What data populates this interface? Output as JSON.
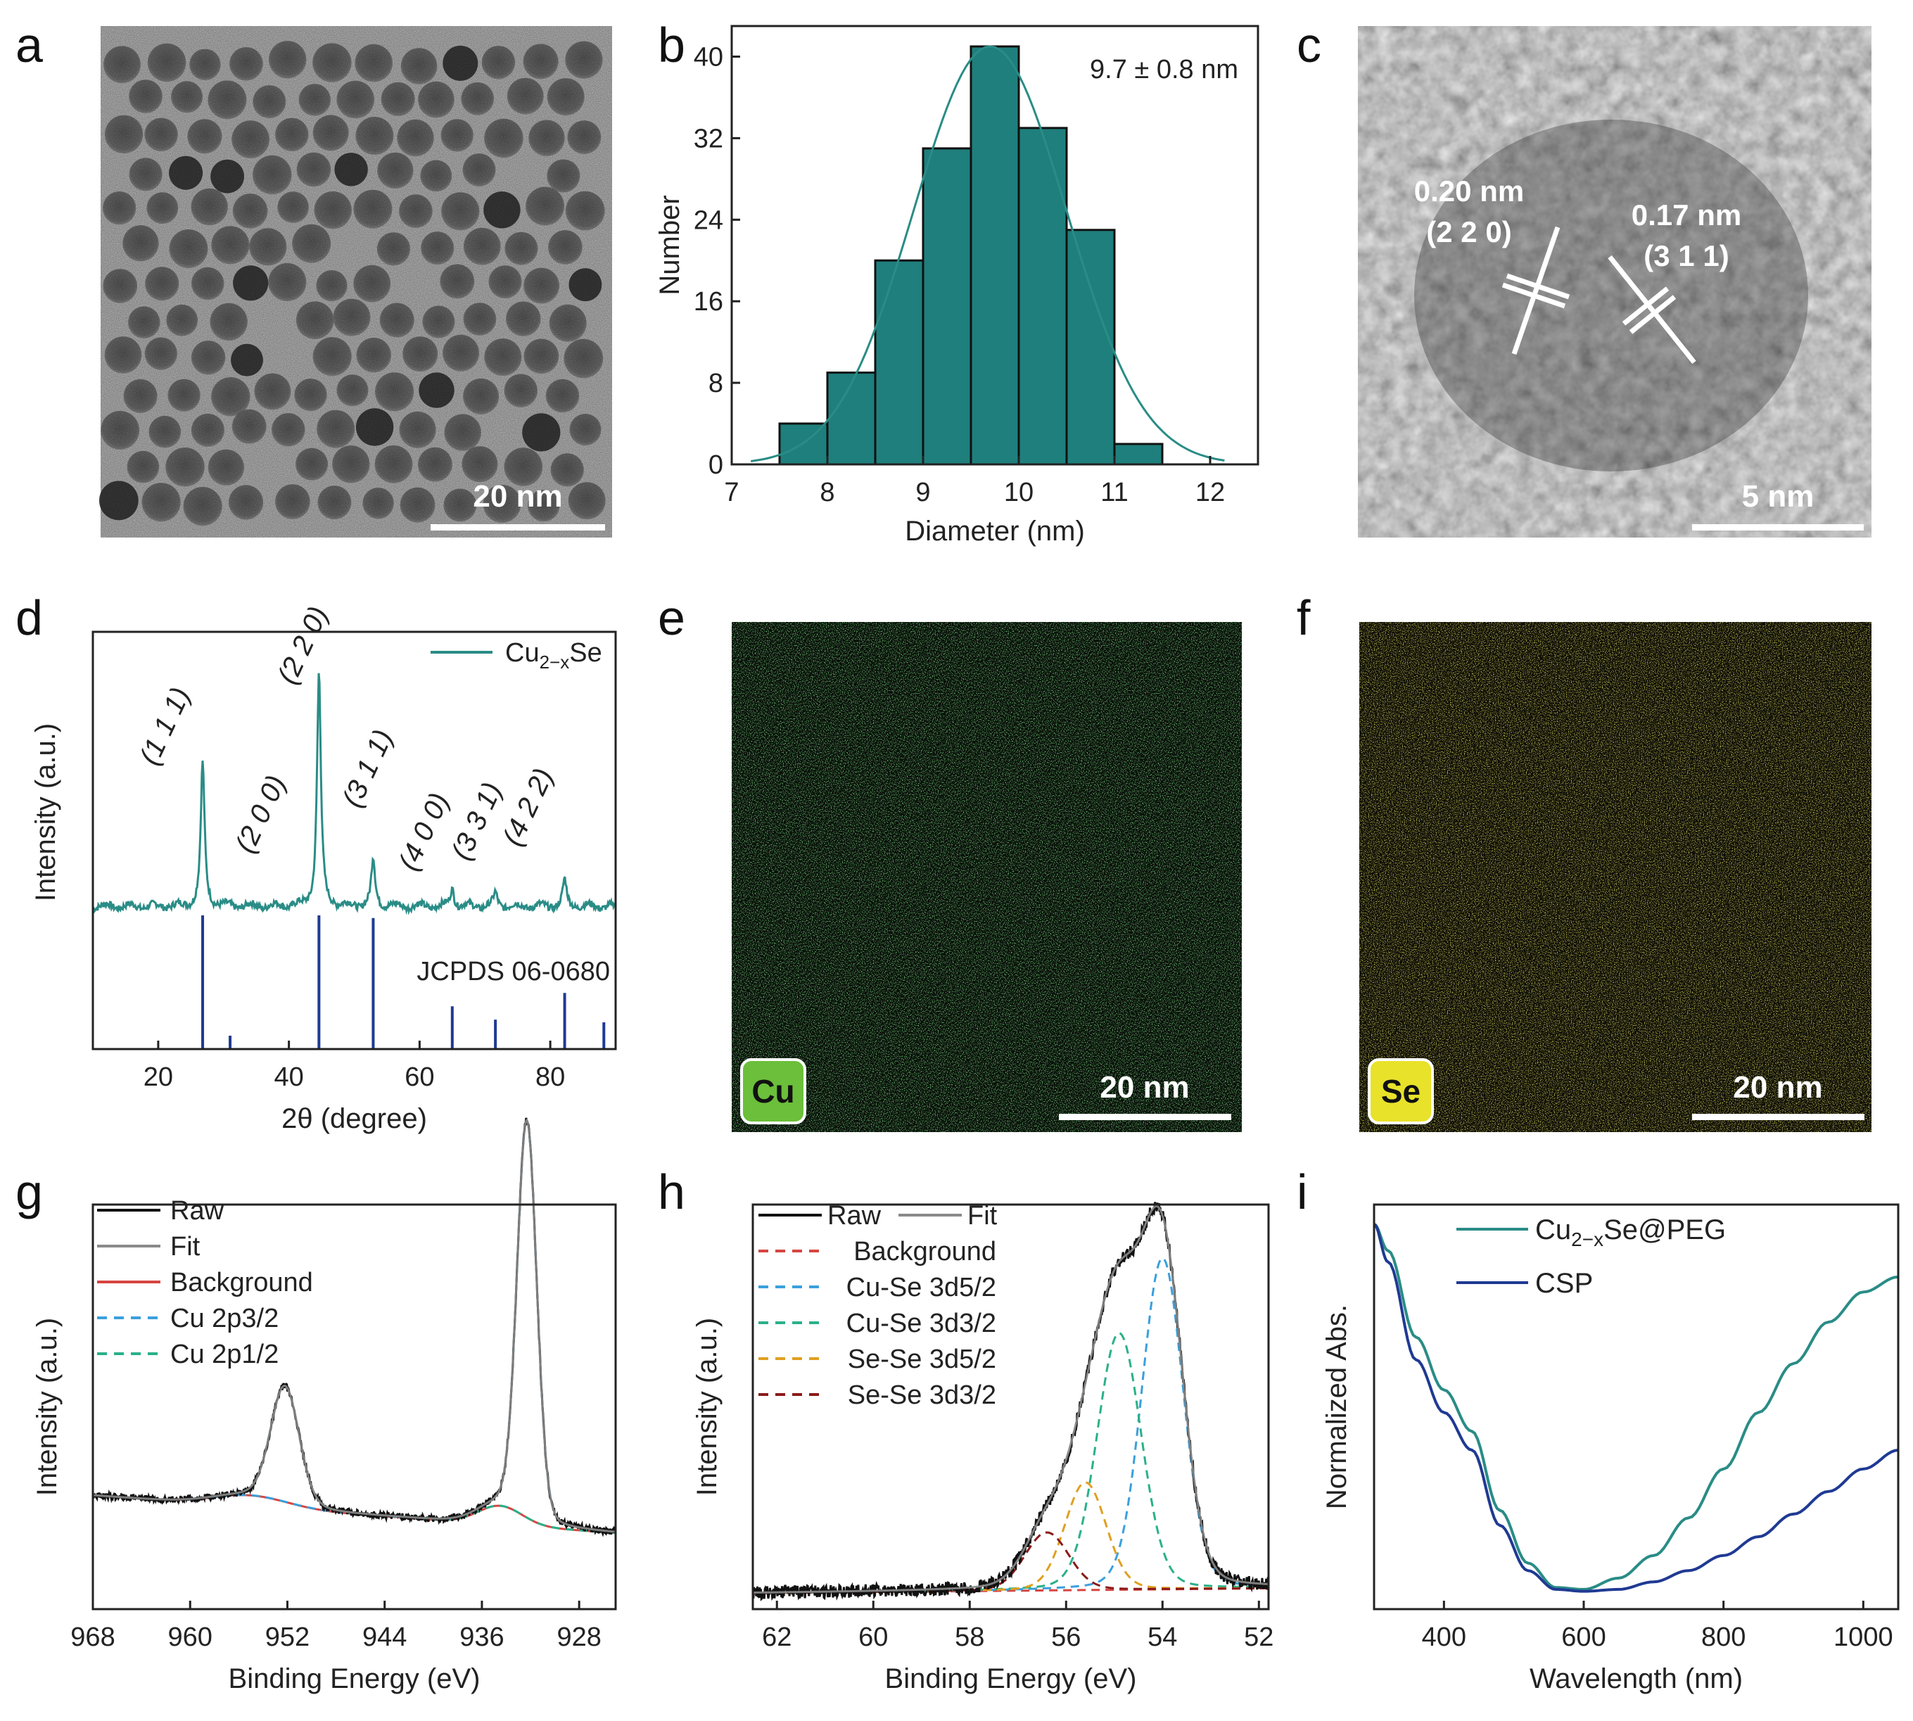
{
  "panels": {
    "a": {
      "label": "a",
      "scale_bar": "20 nm"
    },
    "b": {
      "label": "b"
    },
    "c": {
      "label": "c",
      "scale_bar": "5 nm",
      "fringe1_spacing": "0.20 nm",
      "fringe1_plane": "(2 2 0)",
      "fringe2_spacing": "0.17 nm",
      "fringe2_plane": "(3 1 1)"
    },
    "d": {
      "label": "d"
    },
    "e": {
      "label": "e",
      "element": "Cu",
      "scale_bar": "20 nm"
    },
    "f": {
      "label": "f",
      "element": "Se",
      "scale_bar": "20 nm"
    },
    "g": {
      "label": "g"
    },
    "h": {
      "label": "h"
    },
    "i": {
      "label": "i"
    }
  },
  "colors": {
    "teal": "#2a8c86",
    "bar": "#1f7f7c",
    "navy": "#1f3a93",
    "red": "#d64541",
    "blue_dash": "#3aa0dc",
    "green_dash": "#2ab08a",
    "orange_dash": "#e0a020",
    "darkred_dash": "#8b1a1a",
    "gray": "#8a8a8a",
    "cu_green": "#3fbf3f",
    "se_yellow": "#d8d020"
  },
  "chart_data": [
    {
      "id": "b",
      "type": "bar",
      "bin_edges": [
        7.5,
        8,
        8.5,
        9,
        9.5,
        10,
        10.5,
        11,
        11.5
      ],
      "values": [
        4,
        9,
        20,
        31,
        41,
        33,
        23,
        2
      ],
      "fit": {
        "mean": 9.7,
        "sd": 0.8,
        "peak": 41
      },
      "annotation": "9.7 ± 0.8 nm",
      "xlabel": "Diameter (nm)",
      "ylabel": "Number",
      "xlim": [
        7,
        12.5
      ],
      "ylim": [
        0,
        43
      ],
      "xticks": [
        7,
        8,
        9,
        10,
        11,
        12
      ],
      "yticks": [
        0,
        8,
        16,
        24,
        32,
        40
      ]
    },
    {
      "id": "d",
      "type": "line",
      "xlabel": "2θ (degree)",
      "ylabel": "Intensity (a.u.)",
      "xlim": [
        10,
        90
      ],
      "xticks": [
        20,
        40,
        60,
        80
      ],
      "legend": [
        {
          "label": "Cu",
          "sub": "2−x",
          "tail": "Se"
        }
      ],
      "reference_label": "JCPDS 06-0680",
      "peaks": [
        {
          "x": 26.8,
          "h": 0.55,
          "label": "(1 1 1)"
        },
        {
          "x": 31.0,
          "h": 0.0,
          "label": "(2 0 0)"
        },
        {
          "x": 44.6,
          "h": 0.9,
          "label": "(2 2 0)"
        },
        {
          "x": 52.9,
          "h": 0.18,
          "label": "(3 1 1)"
        },
        {
          "x": 65.0,
          "h": 0.07,
          "label": "(4 0 0)"
        },
        {
          "x": 71.6,
          "h": 0.05,
          "label": "(3 3 1)"
        },
        {
          "x": 82.2,
          "h": 0.1,
          "label": "(4 2 2)"
        }
      ],
      "reference_lines": [
        {
          "x": 26.8,
          "h": 1.0
        },
        {
          "x": 31.0,
          "h": 0.1
        },
        {
          "x": 44.6,
          "h": 1.0
        },
        {
          "x": 52.9,
          "h": 0.98
        },
        {
          "x": 65.0,
          "h": 0.32
        },
        {
          "x": 71.6,
          "h": 0.22
        },
        {
          "x": 82.2,
          "h": 0.42
        },
        {
          "x": 88.2,
          "h": 0.2
        }
      ]
    },
    {
      "id": "g",
      "type": "line",
      "xlabel": "Binding Energy (eV)",
      "ylabel": "Intensity (a.u.)",
      "xlim": [
        968,
        925
      ],
      "xticks": [
        968,
        960,
        952,
        944,
        936,
        928
      ],
      "legend": [
        {
          "label": "Raw",
          "style": "solid",
          "color": "#111111"
        },
        {
          "label": "Fit",
          "style": "solid",
          "color": "#8a8a8a"
        },
        {
          "label": "Background",
          "style": "solid",
          "color": "#d64541"
        },
        {
          "label": "Cu 2p3/2",
          "style": "dashed",
          "color": "#3aa0dc"
        },
        {
          "label": "Cu 2p1/2",
          "style": "dashed",
          "color": "#2ab08a"
        }
      ],
      "peaks": [
        {
          "center": 952.2,
          "height": 0.28,
          "name": "Cu 2p1/2"
        },
        {
          "center": 932.3,
          "height": 0.96,
          "name": "Cu 2p3/2"
        }
      ]
    },
    {
      "id": "h",
      "type": "line",
      "xlabel": "Binding Energy (eV)",
      "ylabel": "Intensity (a.u.)",
      "xlim": [
        62.5,
        51.8
      ],
      "xticks": [
        62,
        60,
        58,
        56,
        54,
        52
      ],
      "legend": [
        {
          "label": "Raw",
          "style": "solid",
          "color": "#111111"
        },
        {
          "label": "Fit",
          "style": "solid",
          "color": "#8a8a8a"
        },
        {
          "label": "Background",
          "style": "dashed",
          "color": "#d64541"
        },
        {
          "label": "Cu-Se 3d5/2",
          "style": "dashed",
          "color": "#3aa0dc"
        },
        {
          "label": "Cu-Se 3d3/2",
          "style": "dashed",
          "color": "#2ab08a"
        },
        {
          "label": "Se-Se 3d5/2",
          "style": "dashed",
          "color": "#e0a020"
        },
        {
          "label": "Se-Se 3d3/2",
          "style": "dashed",
          "color": "#8b1a1a"
        }
      ],
      "peaks": [
        {
          "center": 54.0,
          "height": 0.8,
          "name": "Cu-Se 3d5/2"
        },
        {
          "center": 54.9,
          "height": 0.62,
          "name": "Cu-Se 3d3/2"
        },
        {
          "center": 55.6,
          "height": 0.26,
          "name": "Se-Se 3d5/2"
        },
        {
          "center": 56.4,
          "height": 0.14,
          "name": "Se-Se 3d3/2"
        }
      ]
    },
    {
      "id": "i",
      "type": "line",
      "xlabel": "Wavelength (nm)",
      "ylabel": "Normalized Abs.",
      "xlim": [
        300,
        1050
      ],
      "xticks": [
        400,
        600,
        800,
        1000
      ],
      "legend": [
        {
          "label": "Cu",
          "sub": "2−x",
          "tail": "Se@PEG",
          "color": "#2a8c86"
        },
        {
          "label": "CSP",
          "color": "#1f3a93"
        }
      ],
      "series": [
        {
          "name": "Cu2-xSe@PEG",
          "x": [
            300,
            320,
            360,
            400,
            440,
            480,
            520,
            560,
            600,
            650,
            700,
            750,
            800,
            850,
            900,
            950,
            1000,
            1050
          ],
          "y": [
            1.0,
            0.93,
            0.7,
            0.56,
            0.45,
            0.24,
            0.1,
            0.035,
            0.03,
            0.06,
            0.12,
            0.22,
            0.35,
            0.5,
            0.63,
            0.74,
            0.82,
            0.86
          ]
        },
        {
          "name": "CSP",
          "x": [
            300,
            320,
            360,
            400,
            440,
            480,
            520,
            560,
            600,
            650,
            700,
            750,
            800,
            850,
            900,
            950,
            1000,
            1050
          ],
          "y": [
            1.0,
            0.9,
            0.64,
            0.5,
            0.4,
            0.2,
            0.08,
            0.03,
            0.025,
            0.03,
            0.05,
            0.08,
            0.12,
            0.17,
            0.23,
            0.29,
            0.35,
            0.4
          ]
        }
      ]
    }
  ]
}
